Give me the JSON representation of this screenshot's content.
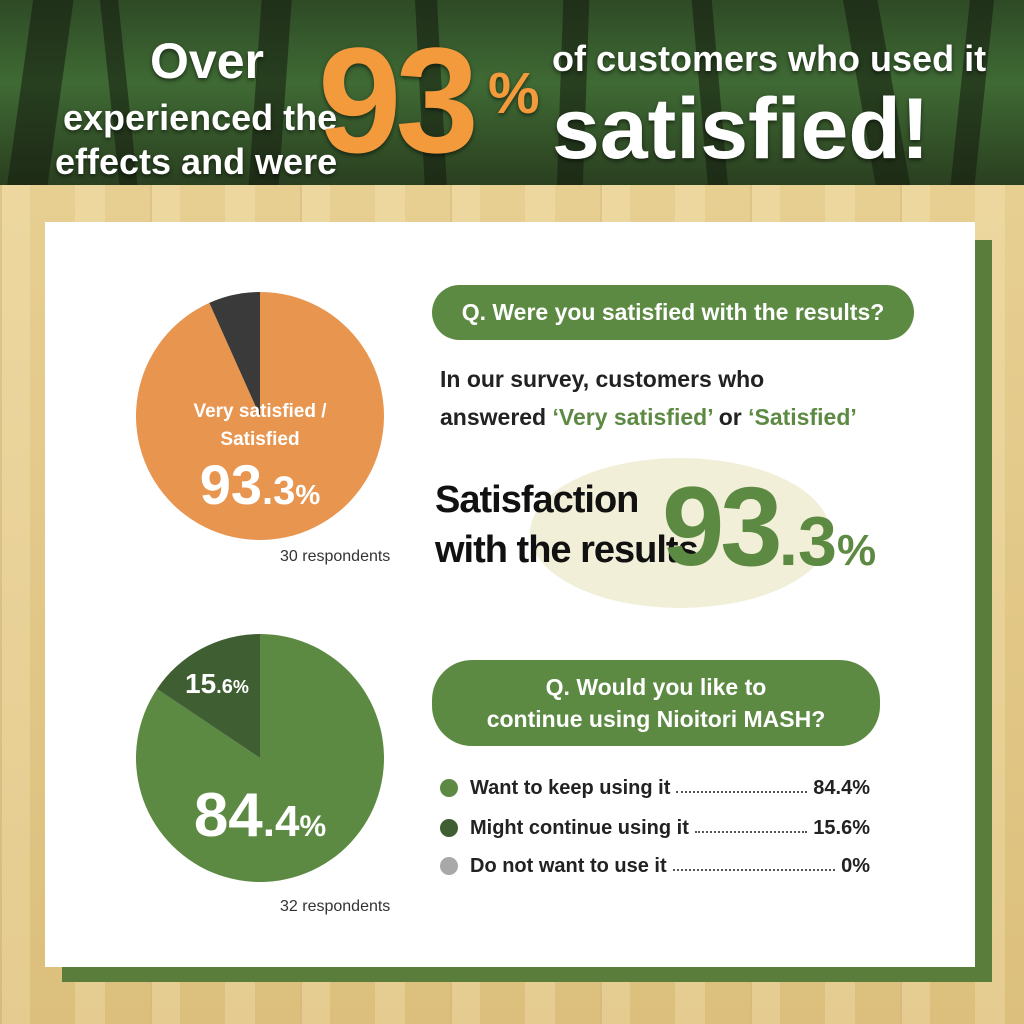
{
  "header": {
    "over": "Over",
    "experienced": "experienced the",
    "effects": "effects and were",
    "big_number": "93",
    "big_percent": "%",
    "customers": "of customers who used it",
    "satisfied": "satisfied!"
  },
  "colors": {
    "orange": "#e8954f",
    "dark": "#3a3a3a",
    "green": "#5d8a42",
    "dark_green": "#3f5e32",
    "grey": "#a8a8a8"
  },
  "survey1": {
    "question": "Q. Were you satisfied with the results?",
    "body_line1": "In our survey, customers who",
    "body_prefix": "answered",
    "option_a": "‘Very satisfied’",
    "body_or": "or",
    "option_b": "‘Satisfied’",
    "sat_line1": "Satisfaction",
    "sat_line2": "with the results",
    "sat_big": "93",
    "sat_decimal": ".3",
    "sat_percent": "%",
    "pie_label1": "Very satisfied /",
    "pie_label2": "Satisfied",
    "pie_value_int": "93",
    "pie_value_dec": ".3",
    "pie_value_pct": "%",
    "respondents": "30 respondents"
  },
  "survey2": {
    "question_line1": "Q. Would you like to",
    "question_line2": "continue using Nioitori MASH?",
    "pie_major_int": "84",
    "pie_major_dec": ".4",
    "pie_major_pct": "%",
    "pie_minor_int": "15",
    "pie_minor_dec": ".6",
    "pie_minor_pct": "%",
    "respondents": "32 respondents",
    "answers": [
      {
        "label": "Want to keep using it",
        "value": "84.4%",
        "color": "#5d8a42"
      },
      {
        "label": "Might continue using it",
        "value": "15.6%",
        "color": "#3f5e32"
      },
      {
        "label": "Do not want to use it",
        "value": "0%",
        "color": "#a8a8a8"
      }
    ]
  },
  "chart_data": [
    {
      "type": "pie",
      "title": "",
      "series": [
        {
          "name": "Very satisfied / Satisfied",
          "value": 93.3,
          "color": "#e8954f"
        },
        {
          "name": "",
          "value": 6.7,
          "color": "#3a3a3a"
        }
      ],
      "respondents": 30
    },
    {
      "type": "pie",
      "title": "",
      "series": [
        {
          "name": "Want to keep using it",
          "value": 84.4,
          "color": "#5d8a42"
        },
        {
          "name": "Might continue using it",
          "value": 15.6,
          "color": "#3f5e32"
        },
        {
          "name": "Do not want to use it",
          "value": 0,
          "color": "#a8a8a8"
        }
      ],
      "respondents": 32
    }
  ]
}
